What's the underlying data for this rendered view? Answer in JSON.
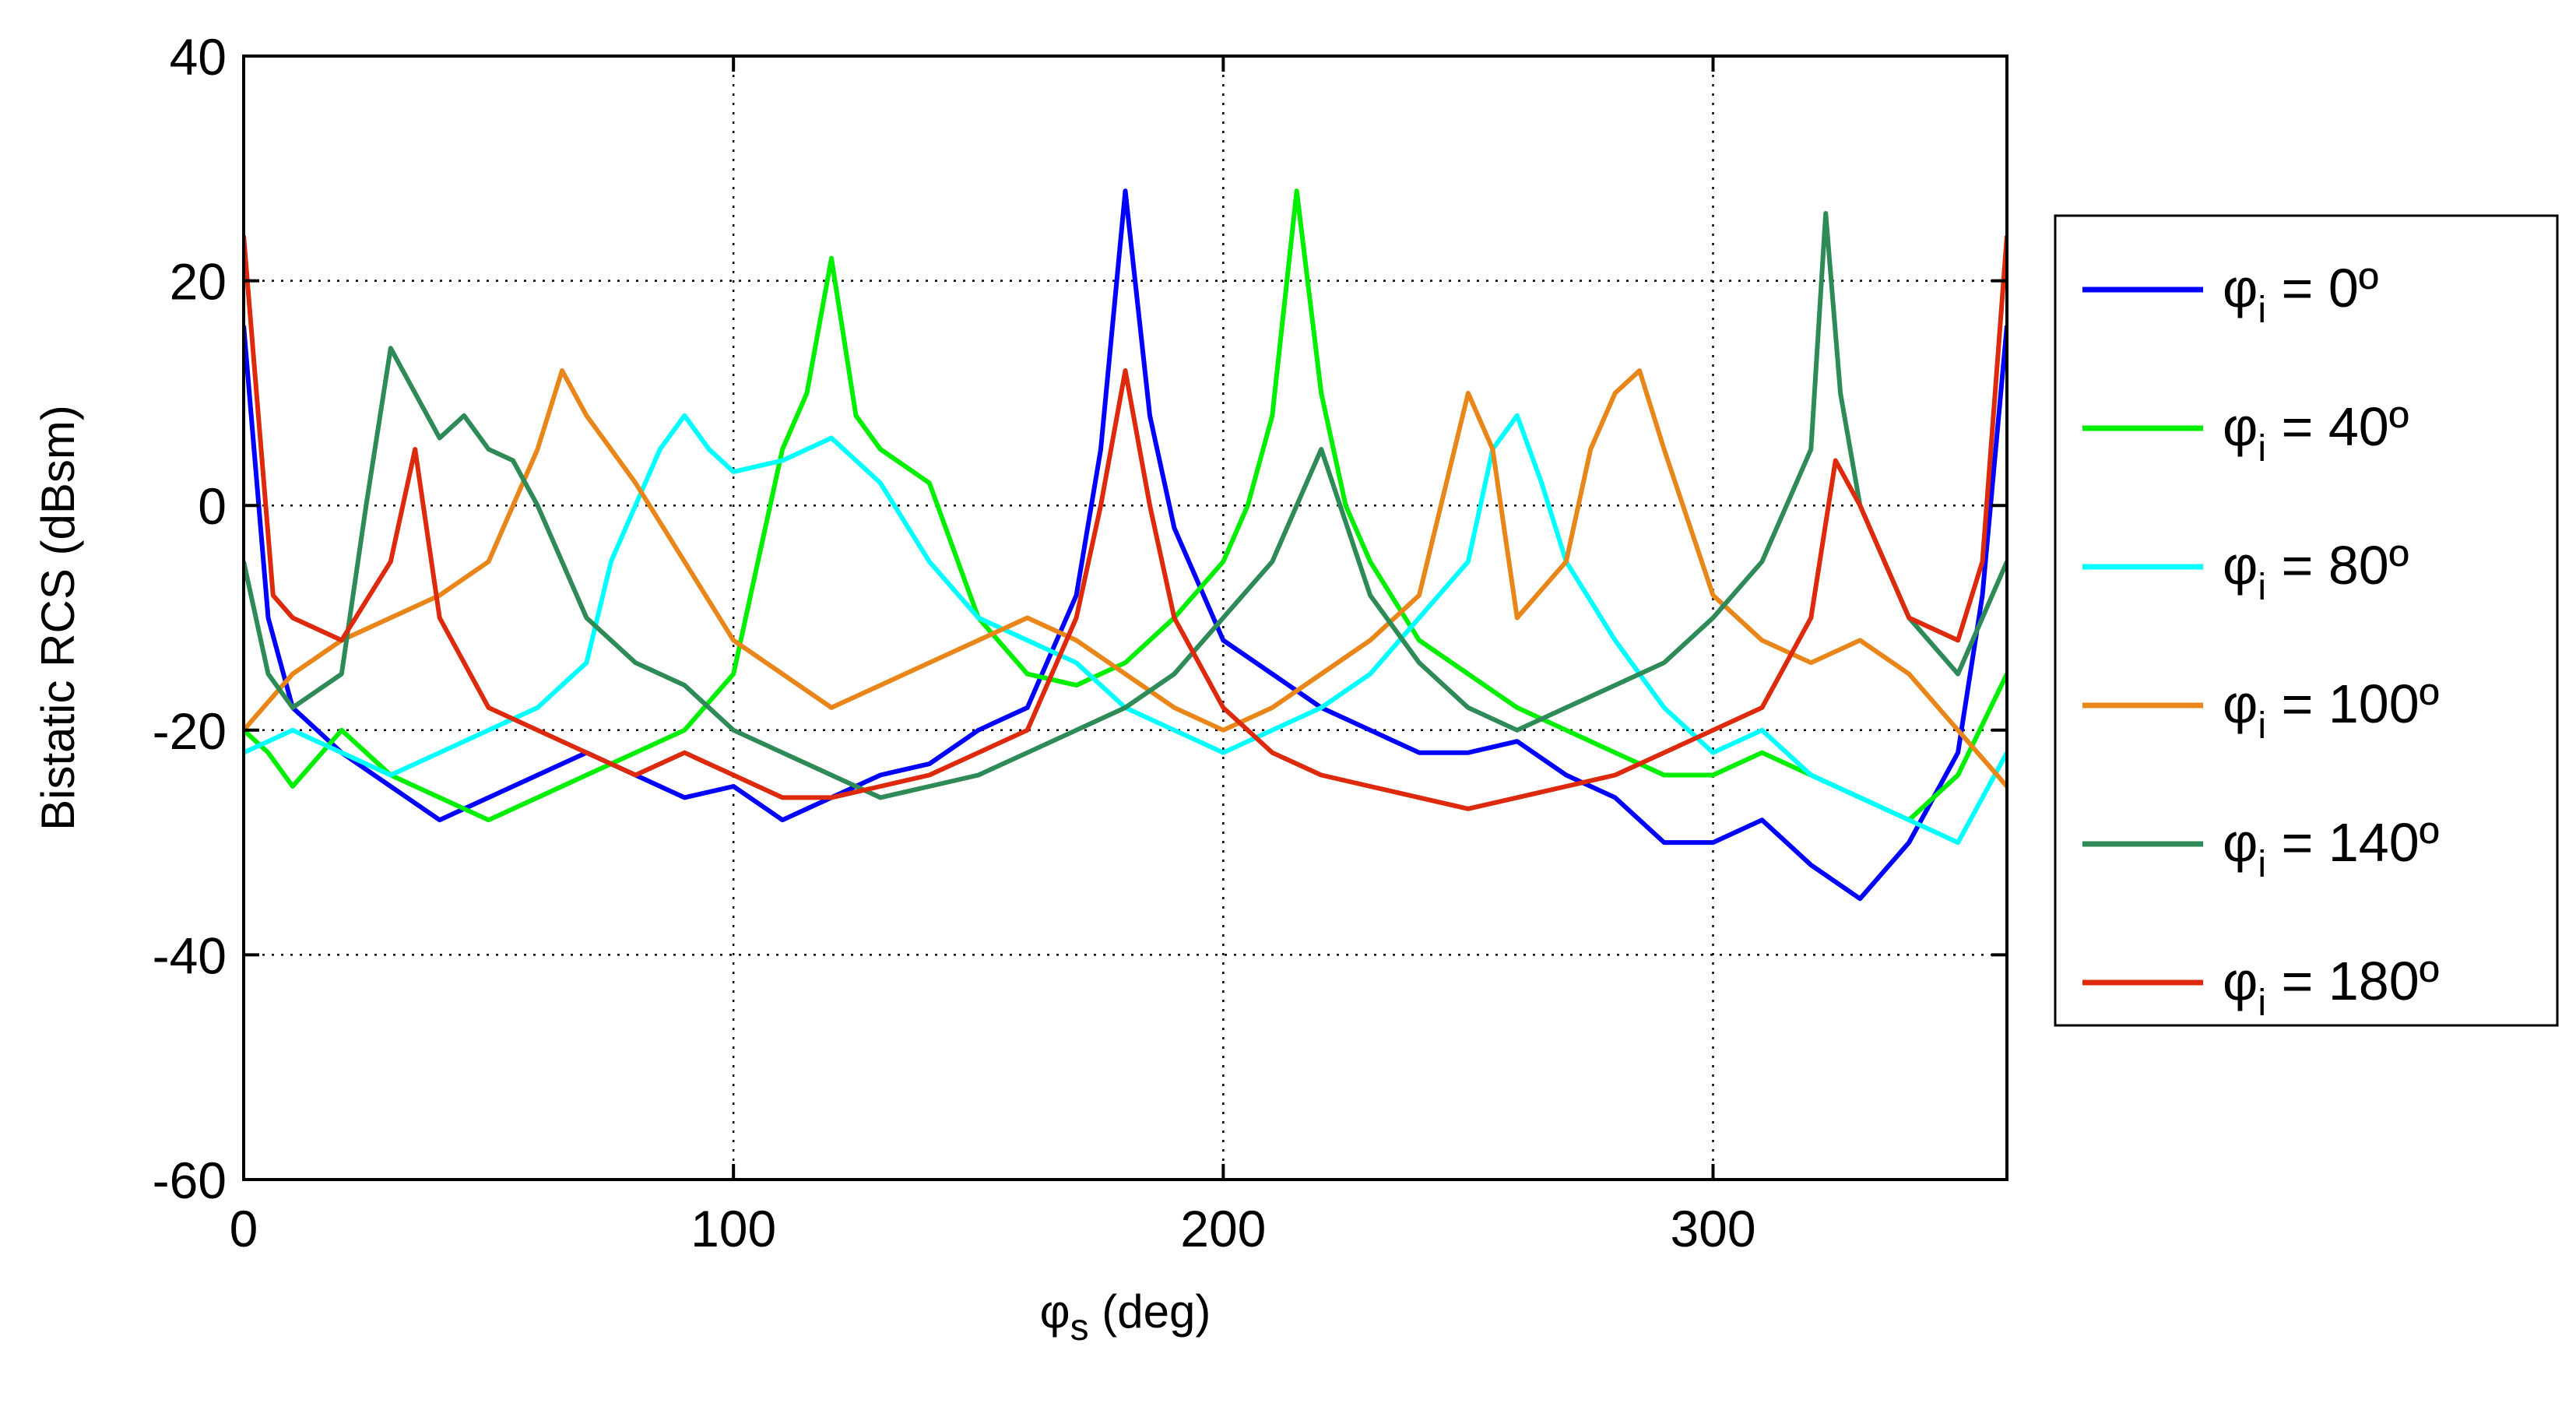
{
  "chart_data": {
    "type": "line",
    "title": "",
    "xlabel": {
      "main": "φ",
      "sub": "s",
      "rest": " (deg)"
    },
    "ylabel": "Bistatic RCS (dBsm)",
    "xlim": [
      0,
      360
    ],
    "ylim": [
      -60,
      40
    ],
    "xticks": [
      "0",
      "100",
      "200",
      "300"
    ],
    "yticks": [
      "-60",
      "-40",
      "-20",
      "0",
      "20",
      "40"
    ],
    "grid": true,
    "legend_position": "right",
    "series": [
      {
        "name": "φi = 0º",
        "label_main": "φ",
        "label_sub": "i",
        "label_rest": " = 0º",
        "color": "#0000ff",
        "x": [
          0,
          5,
          10,
          20,
          30,
          40,
          50,
          60,
          70,
          80,
          90,
          100,
          110,
          120,
          130,
          140,
          150,
          160,
          170,
          175,
          180,
          185,
          190,
          200,
          210,
          220,
          230,
          240,
          250,
          260,
          270,
          280,
          290,
          300,
          310,
          320,
          330,
          340,
          350,
          355,
          360
        ],
        "y": [
          16,
          -10,
          -18,
          -22,
          -25,
          -28,
          -26,
          -24,
          -22,
          -24,
          -26,
          -25,
          -28,
          -26,
          -24,
          -23,
          -20,
          -18,
          -8,
          5,
          28,
          8,
          -2,
          -12,
          -15,
          -18,
          -20,
          -22,
          -22,
          -21,
          -24,
          -26,
          -30,
          -30,
          -28,
          -32,
          -35,
          -30,
          -22,
          -8,
          16
        ]
      },
      {
        "name": "φi = 40º",
        "label_main": "φ",
        "label_sub": "i",
        "label_rest": " = 40º",
        "color": "#00ee00",
        "x": [
          0,
          5,
          10,
          20,
          30,
          40,
          50,
          60,
          70,
          80,
          90,
          100,
          105,
          110,
          115,
          120,
          125,
          130,
          140,
          150,
          160,
          170,
          180,
          190,
          200,
          205,
          210,
          215,
          220,
          225,
          230,
          240,
          250,
          260,
          270,
          280,
          290,
          300,
          310,
          320,
          330,
          340,
          350,
          360
        ],
        "y": [
          -20,
          -22,
          -25,
          -20,
          -24,
          -26,
          -28,
          -26,
          -24,
          -22,
          -20,
          -15,
          -5,
          5,
          10,
          22,
          8,
          5,
          2,
          -10,
          -15,
          -16,
          -14,
          -10,
          -5,
          0,
          8,
          28,
          10,
          0,
          -5,
          -12,
          -15,
          -18,
          -20,
          -22,
          -24,
          -24,
          -22,
          -24,
          -26,
          -28,
          -24,
          -15
        ]
      },
      {
        "name": "φi = 80º",
        "label_main": "φ",
        "label_sub": "i",
        "label_rest": " = 80º",
        "color": "#00ffff",
        "x": [
          0,
          10,
          20,
          30,
          40,
          50,
          60,
          70,
          75,
          80,
          85,
          90,
          95,
          100,
          110,
          120,
          130,
          140,
          150,
          160,
          170,
          180,
          190,
          200,
          210,
          220,
          230,
          240,
          250,
          255,
          260,
          265,
          270,
          280,
          290,
          300,
          310,
          320,
          330,
          340,
          350,
          360
        ],
        "y": [
          -22,
          -20,
          -22,
          -24,
          -22,
          -20,
          -18,
          -14,
          -5,
          0,
          5,
          8,
          5,
          3,
          4,
          6,
          2,
          -5,
          -10,
          -12,
          -14,
          -18,
          -20,
          -22,
          -20,
          -18,
          -15,
          -10,
          -5,
          5,
          8,
          2,
          -5,
          -12,
          -18,
          -22,
          -20,
          -24,
          -26,
          -28,
          -30,
          -22
        ]
      },
      {
        "name": "φi = 100º",
        "label_main": "φ",
        "label_sub": "i",
        "label_rest": " = 100º",
        "color": "#e8861a",
        "x": [
          0,
          10,
          20,
          30,
          40,
          50,
          60,
          65,
          70,
          75,
          80,
          90,
          100,
          110,
          120,
          130,
          140,
          150,
          160,
          170,
          180,
          190,
          200,
          210,
          220,
          230,
          240,
          250,
          255,
          260,
          270,
          275,
          280,
          285,
          290,
          300,
          310,
          320,
          330,
          340,
          350,
          360
        ],
        "y": [
          -20,
          -15,
          -12,
          -10,
          -8,
          -5,
          5,
          12,
          8,
          5,
          2,
          -5,
          -12,
          -15,
          -18,
          -16,
          -14,
          -12,
          -10,
          -12,
          -15,
          -18,
          -20,
          -18,
          -15,
          -12,
          -8,
          10,
          5,
          -10,
          -5,
          5,
          10,
          12,
          5,
          -8,
          -12,
          -14,
          -12,
          -15,
          -20,
          -25
        ]
      },
      {
        "name": "φi = 140º",
        "label_main": "φ",
        "label_sub": "i",
        "label_rest": " = 140º",
        "color": "#2e8b57",
        "x": [
          0,
          5,
          10,
          20,
          25,
          30,
          35,
          40,
          45,
          50,
          55,
          60,
          70,
          80,
          90,
          100,
          110,
          120,
          130,
          140,
          150,
          160,
          170,
          180,
          190,
          200,
          210,
          220,
          230,
          240,
          250,
          260,
          270,
          280,
          290,
          300,
          310,
          315,
          320,
          323,
          326,
          330,
          340,
          350,
          360
        ],
        "y": [
          -5,
          -15,
          -18,
          -15,
          0,
          14,
          10,
          6,
          8,
          5,
          4,
          0,
          -10,
          -14,
          -16,
          -20,
          -22,
          -24,
          -26,
          -25,
          -24,
          -22,
          -20,
          -18,
          -15,
          -10,
          -5,
          5,
          -8,
          -14,
          -18,
          -20,
          -18,
          -16,
          -14,
          -10,
          -5,
          0,
          5,
          26,
          10,
          0,
          -10,
          -15,
          -5
        ]
      },
      {
        "name": "φi = 180º",
        "label_main": "φ",
        "label_sub": "i",
        "label_rest": " = 180º",
        "color": "#dd2a0c",
        "x": [
          0,
          3,
          6,
          10,
          20,
          30,
          35,
          40,
          50,
          60,
          70,
          80,
          90,
          100,
          110,
          120,
          130,
          140,
          150,
          160,
          170,
          175,
          180,
          185,
          190,
          200,
          210,
          220,
          230,
          240,
          250,
          260,
          270,
          280,
          290,
          300,
          310,
          320,
          325,
          330,
          340,
          350,
          355,
          360
        ],
        "y": [
          24,
          8,
          -8,
          -10,
          -12,
          -5,
          5,
          -10,
          -18,
          -20,
          -22,
          -24,
          -22,
          -24,
          -26,
          -26,
          -25,
          -24,
          -22,
          -20,
          -10,
          0,
          12,
          0,
          -10,
          -18,
          -22,
          -24,
          -25,
          -26,
          -27,
          -26,
          -25,
          -24,
          -22,
          -20,
          -18,
          -10,
          4,
          0,
          -10,
          -12,
          -5,
          24
        ]
      }
    ]
  }
}
